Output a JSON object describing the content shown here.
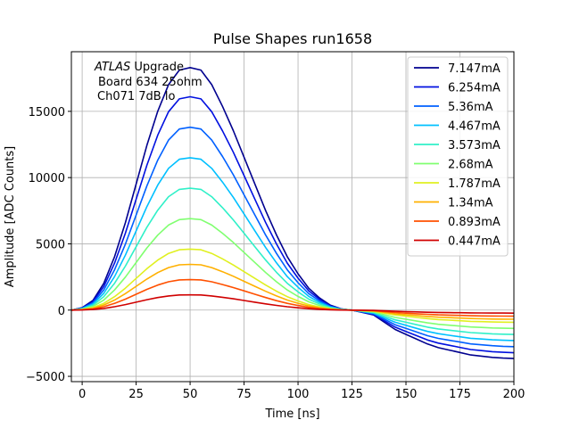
{
  "chart_data": {
    "type": "line",
    "title": "Pulse Shapes run1658",
    "xlabel": "Time [ns]",
    "ylabel": "Amplitude [ADC Counts]",
    "xlim": [
      -5,
      200
    ],
    "ylim": [
      -5400,
      19500
    ],
    "xticks": [
      0,
      25,
      50,
      75,
      100,
      125,
      150,
      175,
      200
    ],
    "yticks": [
      -5000,
      0,
      5000,
      10000,
      15000
    ],
    "grid": true,
    "legend_position": "top-right",
    "annotation": {
      "line1_italic": "ATLAS",
      "line1_rest": " Upgrade",
      "line2": "Board 634 25ohm",
      "line3": "Ch071 7dB lo"
    },
    "x": [
      -5,
      0,
      5,
      10,
      15,
      20,
      25,
      30,
      35,
      40,
      45,
      50,
      55,
      60,
      65,
      70,
      75,
      80,
      85,
      90,
      95,
      100,
      105,
      110,
      115,
      120,
      125,
      130,
      135,
      140,
      145,
      150,
      155,
      160,
      165,
      170,
      175,
      180,
      185,
      190,
      195,
      200
    ],
    "shape": [
      0.0,
      0.01,
      0.04,
      0.11,
      0.22,
      0.36,
      0.52,
      0.68,
      0.82,
      0.93,
      0.99,
      1.0,
      0.99,
      0.93,
      0.84,
      0.74,
      0.63,
      0.52,
      0.41,
      0.31,
      0.22,
      0.15,
      0.09,
      0.05,
      0.02,
      0.005,
      0.0,
      -0.01,
      -0.02,
      -0.05,
      -0.08,
      -0.1,
      -0.12,
      -0.14,
      -0.155,
      -0.165,
      -0.175,
      -0.185,
      -0.19,
      -0.195,
      -0.198,
      -0.2
    ],
    "series": [
      {
        "name": "7.147mA",
        "color": "#00008f",
        "peak": 18300
      },
      {
        "name": "6.254mA",
        "color": "#0010e0",
        "peak": 16100
      },
      {
        "name": "5.36mA",
        "color": "#0060ff",
        "peak": 13800
      },
      {
        "name": "4.467mA",
        "color": "#00c0ff",
        "peak": 11500
      },
      {
        "name": "3.573mA",
        "color": "#30f0c8",
        "peak": 9200
      },
      {
        "name": "2.68mA",
        "color": "#80ff70",
        "peak": 6900
      },
      {
        "name": "1.787mA",
        "color": "#e0f020",
        "peak": 4600
      },
      {
        "name": "1.34mA",
        "color": "#ffb000",
        "peak": 3450
      },
      {
        "name": "0.893mA",
        "color": "#ff5000",
        "peak": 2300
      },
      {
        "name": "0.447mA",
        "color": "#d00000",
        "peak": 1150
      }
    ]
  }
}
